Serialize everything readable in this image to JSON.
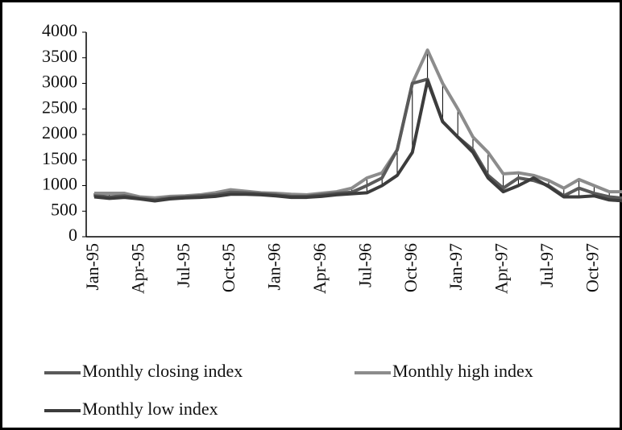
{
  "chart_data": {
    "type": "line",
    "categories": [
      "Jan-95",
      null,
      null,
      "Apr-95",
      null,
      null,
      "Jul-95",
      null,
      null,
      "Oct-95",
      null,
      null,
      "Jan-96",
      null,
      null,
      "Apr-96",
      null,
      null,
      "Jul-96",
      null,
      null,
      "Oct-96",
      null,
      null,
      "Jan-97",
      null,
      null,
      "Apr-97",
      null,
      null,
      "Jul-97",
      null,
      null,
      "Oct-97",
      null,
      null
    ],
    "series": [
      {
        "name": "Monthly closing index",
        "color": "#5a5a5a",
        "values": [
          800,
          780,
          800,
          750,
          720,
          760,
          780,
          800,
          820,
          870,
          860,
          840,
          820,
          790,
          790,
          820,
          850,
          870,
          1000,
          1150,
          1700,
          3000,
          3080,
          2250,
          1950,
          1700,
          1200,
          950,
          1150,
          1100,
          1000,
          800,
          950,
          850,
          780,
          750
        ]
      },
      {
        "name": "Monthly high index",
        "color": "#8c8c8c",
        "values": [
          850,
          850,
          850,
          780,
          760,
          790,
          800,
          820,
          860,
          920,
          890,
          860,
          850,
          830,
          820,
          850,
          880,
          950,
          1150,
          1250,
          1700,
          3000,
          3650,
          3000,
          2500,
          1950,
          1650,
          1230,
          1250,
          1200,
          1100,
          950,
          1120,
          1000,
          880,
          880
        ]
      },
      {
        "name": "Monthly low index",
        "color": "#3c3c3c",
        "values": [
          780,
          750,
          770,
          740,
          700,
          740,
          760,
          770,
          790,
          830,
          830,
          820,
          800,
          770,
          770,
          790,
          820,
          840,
          860,
          1000,
          1200,
          1650,
          3050,
          2250,
          1950,
          1650,
          1150,
          880,
          1000,
          1150,
          980,
          780,
          780,
          800,
          720,
          700
        ]
      }
    ],
    "range_bars": true,
    "ylim": [
      0,
      4000
    ],
    "yticks": [
      0,
      500,
      1000,
      1500,
      2000,
      2500,
      3000,
      3500,
      4000
    ],
    "grid": false,
    "legend": "bottom"
  }
}
